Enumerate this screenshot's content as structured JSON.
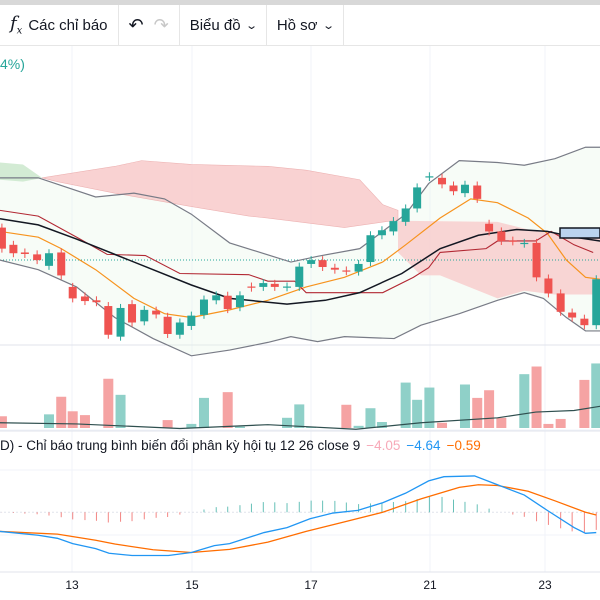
{
  "toolbar": {
    "indicators_label": "Các chỉ báo",
    "indicators_icon": "fx-icon",
    "undo_icon": "undo-icon",
    "redo_icon": "redo-icon",
    "chart_label": "Biểu đồ",
    "profile_label": "Hồ sơ"
  },
  "main_pane": {
    "change_percent_fragment": "4%)"
  },
  "macd": {
    "label": "D) - Chỉ báo trung bình biến đổi phân kỳ hội tụ 12 26 close 9",
    "histogram_value": "−4.05",
    "macd_value": "−4.64",
    "signal_value": "−0.59",
    "colors": {
      "histogram": "#f7a9b8",
      "macd": "#2196f3",
      "signal": "#ff6d00"
    }
  },
  "x_axis": {
    "ticks": [
      "13",
      "15",
      "17",
      "21",
      "23"
    ]
  },
  "colors": {
    "up": "#26a69a",
    "down": "#ef5350",
    "cloud_bear": "#f8c8c8",
    "cloud_bull": "#c8e6c9"
  }
}
